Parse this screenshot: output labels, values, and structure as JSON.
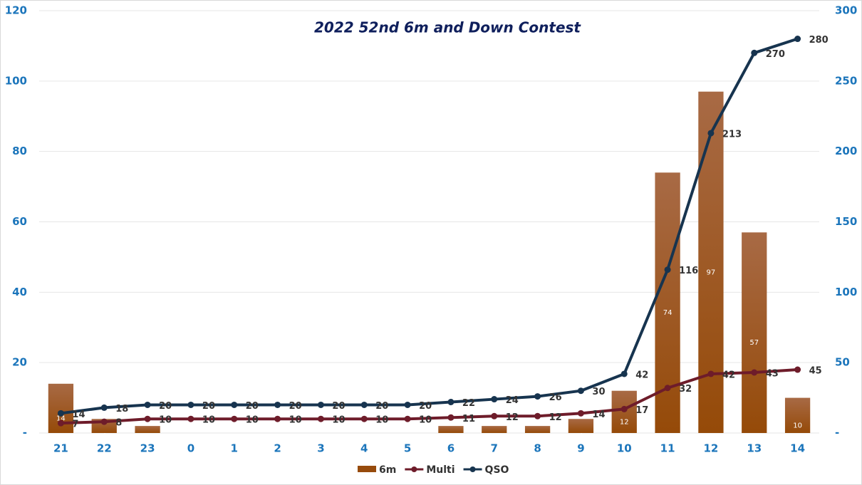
{
  "chart_data": {
    "type": "combo",
    "title": "2022 52nd 6m and Down Contest",
    "categories": [
      "21",
      "22",
      "23",
      "0",
      "1",
      "2",
      "3",
      "4",
      "5",
      "6",
      "7",
      "8",
      "9",
      "10",
      "11",
      "12",
      "13",
      "14"
    ],
    "series": [
      {
        "name": "6m",
        "type": "bar",
        "axis": "y",
        "color": "#974b0c",
        "values": [
          14,
          4,
          2,
          null,
          null,
          null,
          null,
          null,
          null,
          2,
          2,
          2,
          4,
          12,
          74,
          97,
          57,
          10
        ]
      },
      {
        "name": "Multi",
        "type": "line",
        "axis": "y2",
        "color": "#6e1c2a",
        "values": [
          7,
          8,
          10,
          10,
          10,
          10,
          10,
          10,
          10,
          11,
          12,
          12,
          14,
          17,
          32,
          42,
          43,
          45
        ]
      },
      {
        "name": "QSO",
        "type": "line",
        "axis": "y2",
        "color": "#17344f",
        "values": [
          14,
          18,
          20,
          20,
          20,
          20,
          20,
          20,
          20,
          22,
          24,
          26,
          30,
          42,
          116,
          213,
          270,
          280
        ]
      }
    ],
    "ylim": [
      0,
      120
    ],
    "yticks": [
      {
        "value": 0,
        "label": "-"
      },
      20,
      40,
      60,
      80,
      100,
      120
    ],
    "y2lim": [
      0,
      300
    ],
    "y2ticks": [
      {
        "value": 0,
        "label": "-"
      },
      50,
      100,
      150,
      200,
      250,
      300
    ],
    "grid": true,
    "legend": "bottom"
  }
}
